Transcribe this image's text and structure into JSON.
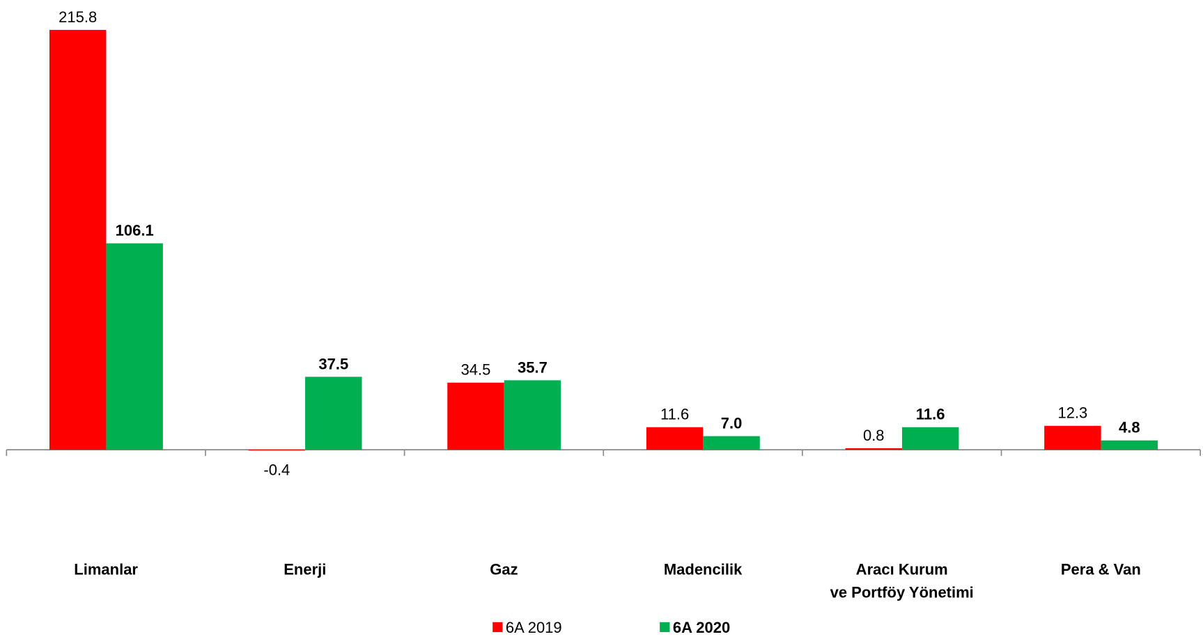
{
  "chart_data": {
    "type": "bar",
    "categories": [
      "Limanlar",
      "Enerji",
      "Gaz",
      "Madencilik",
      "Aracı Kurum\nve Portföy Yönetimi",
      "Pera & Van"
    ],
    "series": [
      {
        "name": "6A 2019",
        "color": "#ff0000",
        "values": [
          215.8,
          -0.4,
          34.5,
          11.6,
          0.8,
          12.3
        ]
      },
      {
        "name": "6A 2020",
        "color": "#00b050",
        "values": [
          106.1,
          37.5,
          35.7,
          7.0,
          11.6,
          4.8
        ],
        "value_labels": [
          "106.1",
          "37.5",
          "35.7",
          "7.0",
          "11.6",
          "4.8"
        ]
      }
    ],
    "legend": "bottom"
  }
}
